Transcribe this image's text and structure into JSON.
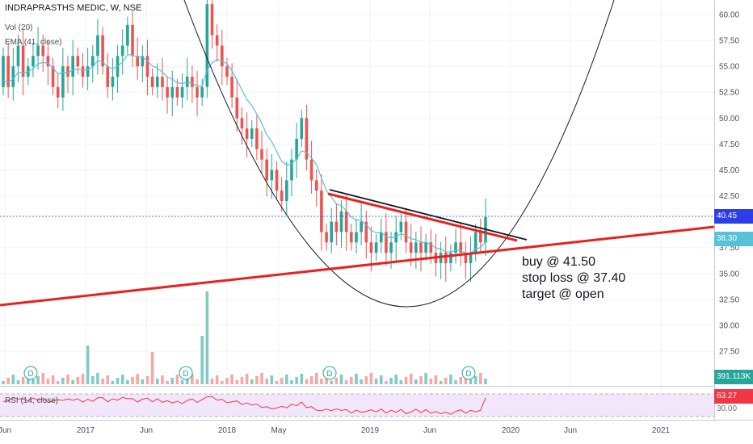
{
  "header": {
    "symbol_line": "INDRAPRASTHS MEDIC, W, NSE",
    "vol_line": "Vol (20)",
    "ema_line": "EMA (41, close)",
    "rsi_line": "RSI (14, close)"
  },
  "annotation": {
    "buy": "buy @ 41.50",
    "stop": "stop loss @ 37.40",
    "target": "target @ open"
  },
  "badges": {
    "last_price": "40.45",
    "ema_price": "38.30",
    "volume": "391.113K",
    "rsi": "63.27",
    "rsi_level": "30.00"
  },
  "colors": {
    "up": "#26a69a",
    "down": "#ef5350",
    "ema": "#56c2d6",
    "trend_red": "#e8211c",
    "trend_black": "#131722",
    "price_line": "#2b3ee8",
    "rsi_line": "#f23645",
    "rsi_bg": "#f2e6fb"
  },
  "chart_data": {
    "type": "candlestick",
    "symbol": "INDRAPRASTHS MEDIC",
    "interval": "W",
    "exchange": "NSE",
    "y_axis_ticks": [
      "60.00",
      "57.50",
      "55.00",
      "52.50",
      "50.00",
      "47.50",
      "45.00",
      "42.50",
      "37.50",
      "35.00",
      "32.50",
      "30.00",
      "27.50"
    ],
    "x_axis_ticks": [
      "Jun",
      "2017",
      "Jun",
      "2018",
      "May",
      "2019",
      "Jun",
      "2020",
      "Jun",
      "2021"
    ],
    "ylim": [
      26.5,
      61
    ],
    "last_price": 40.45,
    "ema_last": 38.3,
    "candle_path": [
      [
        53,
        56
      ],
      [
        56,
        53
      ],
      [
        53,
        55
      ],
      [
        55,
        57
      ],
      [
        57,
        54
      ],
      [
        54,
        55
      ],
      [
        55,
        56
      ],
      [
        56,
        57
      ],
      [
        57,
        56
      ],
      [
        56,
        55
      ],
      [
        55,
        53
      ],
      [
        53,
        52
      ],
      [
        52,
        55
      ],
      [
        55,
        54
      ],
      [
        54,
        56
      ],
      [
        56,
        55
      ],
      [
        55,
        54
      ],
      [
        54,
        55
      ],
      [
        55,
        56
      ],
      [
        56,
        58
      ],
      [
        58,
        55
      ],
      [
        55,
        53
      ],
      [
        53,
        54
      ],
      [
        54,
        56
      ],
      [
        56,
        57
      ],
      [
        57,
        59
      ],
      [
        59,
        56
      ],
      [
        56,
        55
      ],
      [
        55,
        56
      ],
      [
        56,
        54
      ],
      [
        54,
        53
      ],
      [
        53,
        54
      ],
      [
        54,
        53
      ],
      [
        53,
        52
      ],
      [
        52,
        53
      ],
      [
        53,
        52
      ],
      [
        52,
        53
      ],
      [
        53,
        54
      ],
      [
        54,
        53
      ],
      [
        53,
        52
      ],
      [
        52,
        53
      ],
      [
        53,
        61
      ],
      [
        61,
        58
      ],
      [
        58,
        57
      ],
      [
        57,
        55
      ],
      [
        55,
        54
      ],
      [
        54,
        52
      ],
      [
        52,
        50
      ],
      [
        50,
        49
      ],
      [
        49,
        48
      ],
      [
        48,
        49
      ],
      [
        49,
        47
      ],
      [
        47,
        46
      ],
      [
        46,
        44
      ],
      [
        44,
        45
      ],
      [
        45,
        43
      ],
      [
        43,
        42
      ],
      [
        42,
        44
      ],
      [
        44,
        46
      ],
      [
        46,
        48
      ],
      [
        48,
        50
      ],
      [
        50,
        46
      ],
      [
        46,
        44
      ],
      [
        44,
        43
      ],
      [
        43,
        39
      ],
      [
        39,
        38
      ],
      [
        38,
        40
      ],
      [
        40,
        39
      ],
      [
        39,
        41
      ],
      [
        41,
        39
      ],
      [
        39,
        38
      ],
      [
        38,
        39
      ],
      [
        39,
        40
      ],
      [
        40,
        38
      ],
      [
        38,
        37
      ],
      [
        37,
        38
      ],
      [
        38,
        39
      ],
      [
        39,
        37
      ],
      [
        37,
        38
      ],
      [
        38,
        39
      ],
      [
        39,
        40
      ],
      [
        40,
        38
      ],
      [
        38,
        37
      ],
      [
        37,
        38
      ],
      [
        38,
        37
      ],
      [
        37,
        38
      ],
      [
        38,
        37
      ],
      [
        37,
        36
      ],
      [
        36,
        37
      ],
      [
        37,
        36
      ],
      [
        36,
        37
      ],
      [
        37,
        38
      ],
      [
        38,
        37
      ],
      [
        37,
        36
      ],
      [
        36,
        37
      ],
      [
        37,
        39
      ],
      [
        39,
        38
      ],
      [
        38,
        40.45
      ]
    ],
    "trendlines": [
      {
        "name": "support",
        "color": "red",
        "from": [
          "2016-05",
          31.8
        ],
        "to": [
          "2021-06",
          39.7
        ]
      },
      {
        "name": "falling resistance (red)",
        "color": "red",
        "from": [
          "2018-08",
          43.0
        ],
        "to": [
          "2019-12",
          37.6
        ]
      },
      {
        "name": "falling resistance (black)",
        "color": "black",
        "from": [
          "2018-08",
          43.2
        ],
        "to": [
          "2020-01",
          37.8
        ]
      }
    ],
    "rounding_bottom": {
      "low": 32.0,
      "low_date": "2019-04"
    },
    "rsi": {
      "period": 14,
      "last": 63.27,
      "levels": [
        70,
        30
      ]
    },
    "volume": {
      "last": "391.113K",
      "dividend_markers": [
        "D",
        "D",
        "D",
        "D"
      ]
    }
  }
}
